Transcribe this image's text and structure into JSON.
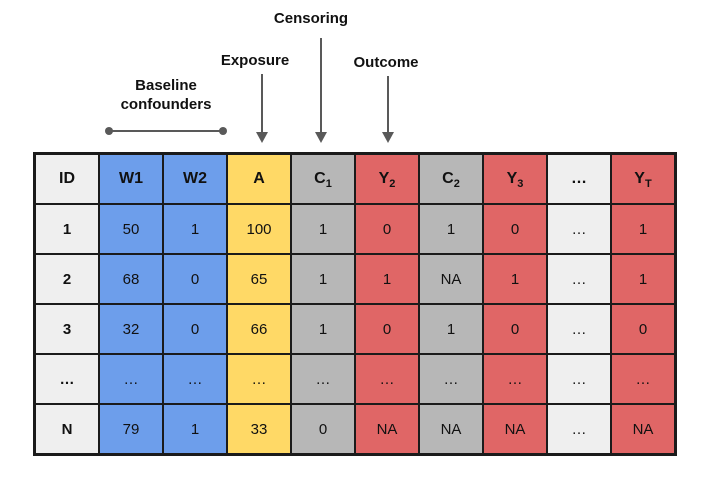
{
  "annotations": {
    "baseline_confounders": {
      "line1": "Baseline",
      "line2": "confounders"
    },
    "exposure": {
      "text": "Exposure"
    },
    "censoring": {
      "text": "Censoring"
    },
    "outcome": {
      "text": "Outcome"
    }
  },
  "colors": {
    "id_col": "#EFEFEF",
    "confounder_col": "#6D9EEB",
    "exposure_col": "#FFD966",
    "censoring_col": "#B7B7B7",
    "outcome_col": "#E06666",
    "border": "#1B1B1B",
    "arrow": "#595959"
  },
  "table": {
    "columns": [
      {
        "base": "ID",
        "sub": "",
        "role": "id"
      },
      {
        "base": "W1",
        "sub": "",
        "role": "confounder"
      },
      {
        "base": "W2",
        "sub": "",
        "role": "confounder"
      },
      {
        "base": "A",
        "sub": "",
        "role": "exposure"
      },
      {
        "base": "C",
        "sub": "1",
        "role": "censoring"
      },
      {
        "base": "Y",
        "sub": "2",
        "role": "outcome"
      },
      {
        "base": "C",
        "sub": "2",
        "role": "censoring"
      },
      {
        "base": "Y",
        "sub": "3",
        "role": "outcome"
      },
      {
        "base": "…",
        "sub": "",
        "role": "id"
      },
      {
        "base": "Y",
        "sub": "T",
        "role": "outcome"
      }
    ],
    "rows": [
      [
        "1",
        "50",
        "1",
        "100",
        "1",
        "0",
        "1",
        "0",
        "…",
        "1"
      ],
      [
        "2",
        "68",
        "0",
        "65",
        "1",
        "1",
        "NA",
        "1",
        "…",
        "1"
      ],
      [
        "3",
        "32",
        "0",
        "66",
        "1",
        "0",
        "1",
        "0",
        "…",
        "0"
      ],
      [
        "…",
        "…",
        "…",
        "…",
        "…",
        "…",
        "…",
        "…",
        "…",
        "…"
      ],
      [
        "N",
        "79",
        "1",
        "33",
        "0",
        "NA",
        "NA",
        "NA",
        "…",
        "NA"
      ]
    ]
  }
}
